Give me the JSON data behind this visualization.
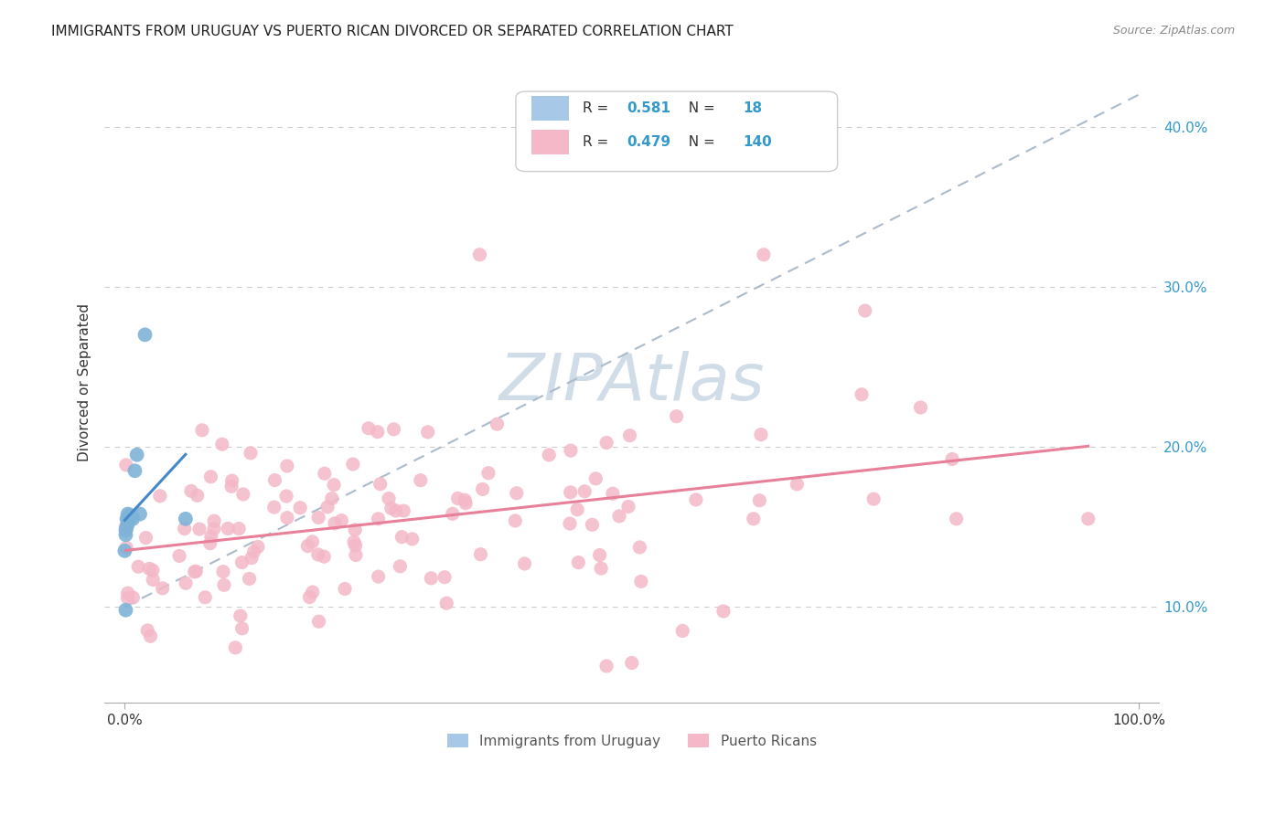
{
  "title": "IMMIGRANTS FROM URUGUAY VS PUERTO RICAN DIVORCED OR SEPARATED CORRELATION CHART",
  "source_text": "Source: ZipAtlas.com",
  "ylabel": "Divorced or Separated",
  "right_ytick_vals": [
    0.1,
    0.2,
    0.3,
    0.4
  ],
  "right_ytick_labels": [
    "10.0%",
    "20.0%",
    "30.0%",
    "40.0%"
  ],
  "legend1_color": "#a8c8e8",
  "legend2_color": "#f4b8c8",
  "blue_scatter_color": "#7eb3d8",
  "pink_scatter_color": "#f4b8c8",
  "blue_line_color": "#4488cc",
  "pink_line_color": "#e8809a",
  "dashed_line_color": "#aabbcc",
  "watermark_color": "#d0dde8",
  "title_fontsize": 11,
  "source_fontsize": 9,
  "blue_x": [
    0.0,
    0.001,
    0.001,
    0.001,
    0.002,
    0.002,
    0.003,
    0.003,
    0.004,
    0.005,
    0.005,
    0.007,
    0.008,
    0.01,
    0.012,
    0.015,
    0.02,
    0.06
  ],
  "blue_y": [
    0.135,
    0.145,
    0.148,
    0.098,
    0.15,
    0.155,
    0.152,
    0.158,
    0.155,
    0.157,
    0.155,
    0.157,
    0.155,
    0.185,
    0.195,
    0.158,
    0.27,
    0.155
  ]
}
